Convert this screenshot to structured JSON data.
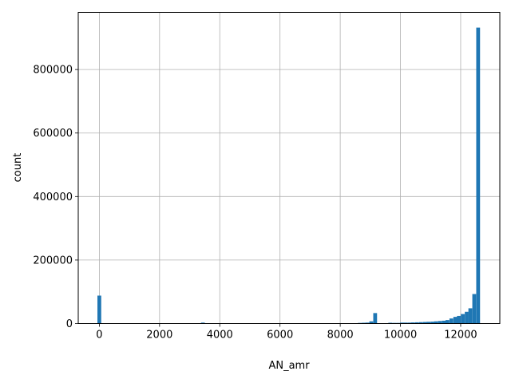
{
  "chart_data": {
    "type": "bar",
    "xlabel": "AN_amr",
    "ylabel": "count",
    "xlim": [
      -700,
      13300
    ],
    "ylim": [
      0,
      980000
    ],
    "xticks": [
      0,
      2000,
      4000,
      6000,
      8000,
      10000,
      12000
    ],
    "yticks": [
      0,
      200000,
      400000,
      600000,
      800000
    ],
    "grid": true,
    "bar_color": "#1f77b4",
    "bin_width": 126,
    "bins": [
      {
        "x": 0,
        "count": 88000
      },
      {
        "x": 3440,
        "count": 3000
      },
      {
        "x": 8650,
        "count": 2000
      },
      {
        "x": 8780,
        "count": 2500
      },
      {
        "x": 8900,
        "count": 3000
      },
      {
        "x": 9030,
        "count": 7000
      },
      {
        "x": 9160,
        "count": 33000
      },
      {
        "x": 9660,
        "count": 2500
      },
      {
        "x": 9790,
        "count": 2000
      },
      {
        "x": 9920,
        "count": 2000
      },
      {
        "x": 10050,
        "count": 3000
      },
      {
        "x": 10170,
        "count": 3000
      },
      {
        "x": 10300,
        "count": 3000
      },
      {
        "x": 10420,
        "count": 3500
      },
      {
        "x": 10550,
        "count": 4000
      },
      {
        "x": 10680,
        "count": 4500
      },
      {
        "x": 10810,
        "count": 5000
      },
      {
        "x": 10930,
        "count": 5500
      },
      {
        "x": 11060,
        "count": 6000
      },
      {
        "x": 11180,
        "count": 7000
      },
      {
        "x": 11310,
        "count": 8000
      },
      {
        "x": 11440,
        "count": 9000
      },
      {
        "x": 11560,
        "count": 11000
      },
      {
        "x": 11690,
        "count": 16000
      },
      {
        "x": 11820,
        "count": 21000
      },
      {
        "x": 11940,
        "count": 24000
      },
      {
        "x": 12070,
        "count": 30000
      },
      {
        "x": 12200,
        "count": 37000
      },
      {
        "x": 12320,
        "count": 48000
      },
      {
        "x": 12450,
        "count": 93000
      },
      {
        "x": 12580,
        "count": 932000
      }
    ]
  }
}
